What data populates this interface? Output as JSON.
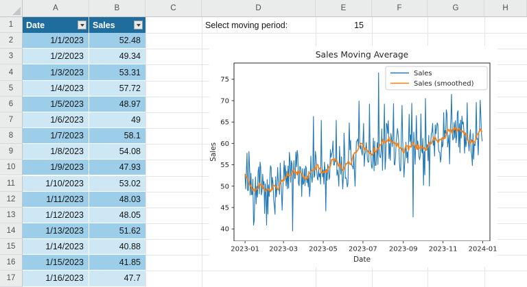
{
  "spreadsheet": {
    "column_letters": [
      "A",
      "B",
      "C",
      "D",
      "E",
      "F",
      "G",
      "H"
    ],
    "row_numbers": [
      "1",
      "2",
      "3",
      "4",
      "5",
      "6",
      "7",
      "8",
      "9",
      "10",
      "11",
      "12",
      "13",
      "14",
      "15",
      "16",
      "17"
    ],
    "controls": {
      "label": "Select moving period:",
      "value": "15"
    },
    "table": {
      "headers": [
        "Date",
        "Sales"
      ],
      "rows": [
        [
          "1/1/2023",
          "52.48"
        ],
        [
          "1/2/2023",
          "49.34"
        ],
        [
          "1/3/2023",
          "53.31"
        ],
        [
          "1/4/2023",
          "57.72"
        ],
        [
          "1/5/2023",
          "48.97"
        ],
        [
          "1/6/2023",
          "49"
        ],
        [
          "1/7/2023",
          "58.1"
        ],
        [
          "1/8/2023",
          "54.08"
        ],
        [
          "1/9/2023",
          "47.93"
        ],
        [
          "1/10/2023",
          "53.02"
        ],
        [
          "1/11/2023",
          "48.03"
        ],
        [
          "1/12/2023",
          "48.05"
        ],
        [
          "1/13/2023",
          "51.62"
        ],
        [
          "1/14/2023",
          "40.88"
        ],
        [
          "1/15/2023",
          "41.85"
        ],
        [
          "1/16/2023",
          "47.7"
        ]
      ]
    },
    "colors": {
      "table_header_bg": "#1f6d9c",
      "band_dark": "#9ccee9",
      "band_light": "#cde7f5",
      "gridline": "#e3e6e8",
      "header_bg": "#eaebeb"
    }
  },
  "chart_data": {
    "type": "line",
    "title": "Sales Moving Average",
    "xlabel": "Date",
    "ylabel": "Sales",
    "x_tick_labels": [
      "2023-01",
      "2023-03",
      "2023-05",
      "2023-07",
      "2023-09",
      "2023-11",
      "2024-01"
    ],
    "x_tick_days": [
      0,
      59,
      120,
      181,
      243,
      304,
      365
    ],
    "y_ticks": [
      40,
      45,
      50,
      55,
      60,
      65,
      70,
      75
    ],
    "xlim_days": [
      -17,
      376
    ],
    "ylim": [
      37.2,
      78.8
    ],
    "n_days": 365,
    "moving_average_window": 15,
    "legend_position": "upper right",
    "series": [
      {
        "name": "Sales",
        "color": "#1f77b4",
        "width": 1.1
      },
      {
        "name": "Sales (smoothed)",
        "color": "#ff7f0e",
        "width": 1.7
      }
    ],
    "first_days_actual": [
      52.48,
      49.34,
      53.31,
      57.72,
      48.97,
      49,
      58.1,
      54.08,
      47.93,
      53.02,
      48.03,
      48.05,
      51.62,
      40.88,
      41.85,
      47.7
    ],
    "trend_keypoints": [
      [
        0,
        52.2
      ],
      [
        4,
        52.9
      ],
      [
        9,
        52.4
      ],
      [
        14,
        51.5
      ],
      [
        20,
        49.8
      ],
      [
        26,
        48.4
      ],
      [
        31,
        48.9
      ],
      [
        38,
        49.8
      ],
      [
        43,
        50.3
      ],
      [
        48,
        49.8
      ],
      [
        54,
        50.3
      ],
      [
        60,
        51.0
      ],
      [
        66,
        51.9
      ],
      [
        72,
        52.8
      ],
      [
        78,
        53.6
      ],
      [
        83,
        53.2
      ],
      [
        88,
        52.7
      ],
      [
        95,
        52.5
      ],
      [
        101,
        52.4
      ],
      [
        107,
        53.0
      ],
      [
        112,
        52.3
      ],
      [
        118,
        51.9
      ],
      [
        124,
        52.7
      ],
      [
        129,
        54.1
      ],
      [
        135,
        55.3
      ],
      [
        140,
        55.0
      ],
      [
        146,
        53.9
      ],
      [
        151,
        53.8
      ],
      [
        157,
        54.5
      ],
      [
        163,
        55.0
      ],
      [
        169,
        55.5
      ],
      [
        175,
        56.4
      ],
      [
        181,
        57.4
      ],
      [
        186,
        56.8
      ],
      [
        191,
        57.7
      ],
      [
        196,
        57.3
      ],
      [
        202,
        55.9
      ],
      [
        208,
        55.8
      ],
      [
        213,
        57.0
      ],
      [
        218,
        59.2
      ],
      [
        223,
        60.3
      ],
      [
        228,
        60.0
      ],
      [
        232,
        58.4
      ],
      [
        238,
        57.4
      ],
      [
        244,
        57.7
      ],
      [
        251,
        58.0
      ],
      [
        257,
        57.9
      ],
      [
        262,
        59.0
      ],
      [
        267,
        59.7
      ],
      [
        272,
        58.4
      ],
      [
        277,
        57.3
      ],
      [
        282,
        57.6
      ],
      [
        287,
        59.6
      ],
      [
        293,
        60.0
      ],
      [
        300,
        60.2
      ],
      [
        307,
        61.1
      ],
      [
        313,
        61.9
      ],
      [
        319,
        62.7
      ],
      [
        325,
        62.5
      ],
      [
        331,
        62.6
      ],
      [
        337,
        61.9
      ],
      [
        343,
        61.3
      ],
      [
        349,
        60.4
      ],
      [
        353,
        60.6
      ],
      [
        357,
        61.1
      ],
      [
        361,
        61.8
      ],
      [
        364,
        63.3
      ]
    ],
    "noise_amplitude": 5.5,
    "seed": 7,
    "anchors": [
      [
        33,
        40.9
      ],
      [
        35,
        43.5
      ],
      [
        57,
        44.4
      ],
      [
        73,
        39.5
      ],
      [
        105,
        66.3
      ],
      [
        117,
        65.4
      ],
      [
        124,
        44.2
      ],
      [
        140,
        65.4
      ],
      [
        152,
        62.4
      ],
      [
        160,
        64.8
      ],
      [
        175,
        69.9
      ],
      [
        182,
        64.7
      ],
      [
        186,
        60.2
      ],
      [
        191,
        69.2
      ],
      [
        199,
        60.5
      ],
      [
        205,
        76.5
      ],
      [
        210,
        63.4
      ],
      [
        214,
        69.2
      ],
      [
        218,
        64.5
      ],
      [
        222,
        60.0
      ],
      [
        228,
        69.3
      ],
      [
        234,
        63.5
      ],
      [
        241,
        68.9
      ],
      [
        247,
        60.3
      ],
      [
        252,
        66.8
      ],
      [
        256,
        69.4
      ],
      [
        258,
        42.8
      ],
      [
        263,
        66.5
      ],
      [
        270,
        66.9
      ],
      [
        274,
        50.2
      ],
      [
        277,
        70.5
      ],
      [
        283,
        50.0
      ],
      [
        288,
        64.7
      ],
      [
        295,
        64.8
      ],
      [
        300,
        55.6
      ],
      [
        305,
        67.2
      ],
      [
        310,
        66.9
      ],
      [
        314,
        55.2
      ],
      [
        317,
        71.5
      ],
      [
        321,
        64.9
      ],
      [
        326,
        67.1
      ],
      [
        330,
        57.8
      ],
      [
        333,
        66.4
      ],
      [
        337,
        57.7
      ],
      [
        341,
        69.5
      ],
      [
        346,
        63.2
      ],
      [
        349,
        54.8
      ],
      [
        352,
        59.9
      ],
      [
        355,
        69.6
      ],
      [
        358,
        57.3
      ],
      [
        361,
        70.1
      ],
      [
        364,
        60.5
      ]
    ]
  }
}
